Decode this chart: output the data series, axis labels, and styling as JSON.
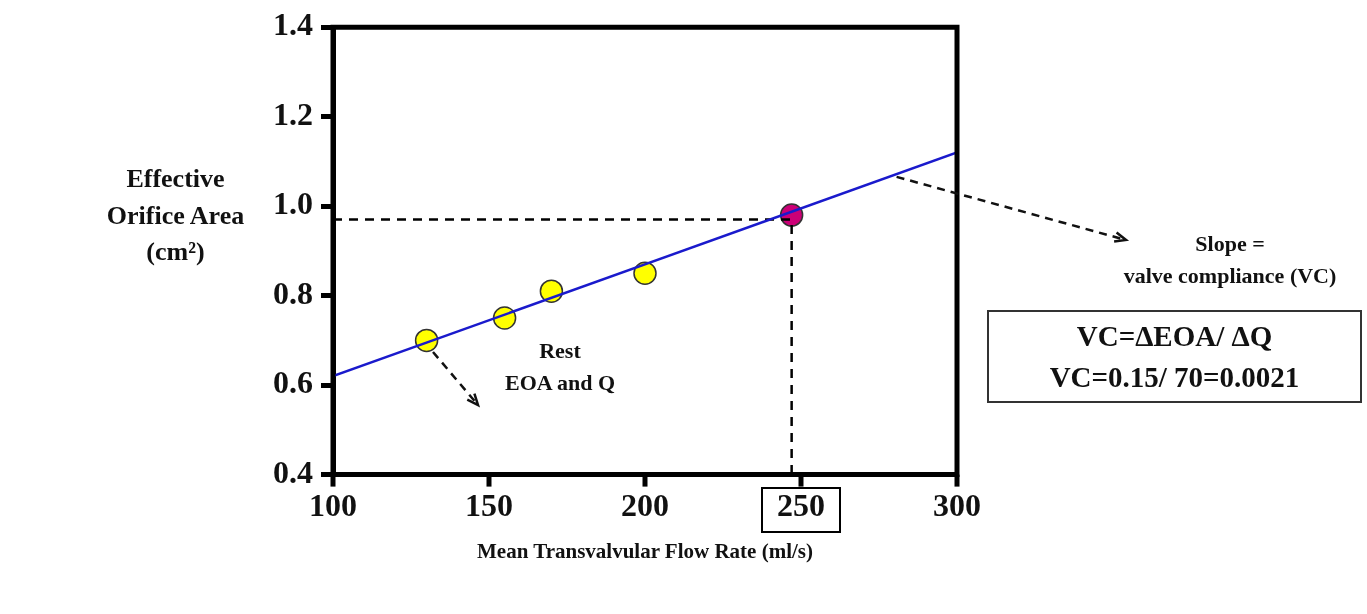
{
  "chart_data": {
    "type": "scatter",
    "xlabel": "Mean Transvalvular Flow Rate (ml/s)",
    "ylabel": "Effective Orifice Area (cm²)",
    "xlim": [
      100,
      300
    ],
    "xticks": [
      100,
      150,
      200,
      250,
      300
    ],
    "ylim": [
      0.4,
      1.4
    ],
    "yticks": [
      0.4,
      0.6,
      0.8,
      {
        "value": 1,
        "label": "1.0"
      },
      1.2,
      1.4
    ],
    "grid": false,
    "legend": false,
    "marker": "circle",
    "series": [
      {
        "type": "line",
        "color": "#1a1acc",
        "x": [
          100,
          300
        ],
        "values": [
          0.62,
          1.12
        ],
        "line_style": "solid",
        "marker": "none"
      },
      {
        "type": "line",
        "color": "#000000",
        "x": [
          100,
          247,
          247
        ],
        "values": [
          0.97,
          0.97,
          0.4
        ],
        "line_style": "dashed",
        "marker": "none"
      },
      {
        "type": "scatter",
        "color": "#ffff00",
        "x": [
          130,
          155,
          170,
          200
        ],
        "values": [
          0.7,
          0.75,
          0.81,
          0.85
        ]
      },
      {
        "type": "scatter",
        "color": "#cc0077",
        "x": [
          247
        ],
        "values": [
          0.98
        ]
      }
    ],
    "annotations": [
      "Rest\nEOA and Q",
      {
        "text": "Slope =\nvalve compliance (VC)",
        "x": 280,
        "y": 1.07
      },
      "VC=ΔEOA/ ΔQ",
      "VC=0.15/ 70=0.0021"
    ]
  }
}
